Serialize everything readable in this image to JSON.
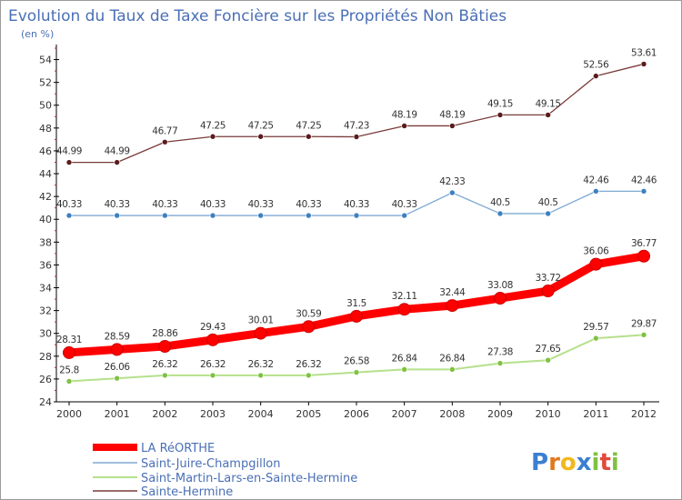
{
  "chart_data": {
    "type": "line",
    "title": "Evolution du Taux de Taxe Foncière sur les Propriétés Non Bâties",
    "ylabel": "(en %)",
    "xlabel": "",
    "x": [
      "2000",
      "2001",
      "2002",
      "2003",
      "2004",
      "2005",
      "2006",
      "2007",
      "2008",
      "2009",
      "2010",
      "2011",
      "2012"
    ],
    "ylim": [
      24,
      55
    ],
    "yticks": [
      24,
      26,
      28,
      30,
      32,
      34,
      36,
      38,
      40,
      42,
      44,
      46,
      48,
      50,
      52,
      54
    ],
    "grid": false,
    "legend_position": "bottom-left",
    "series": [
      {
        "name": "LA RéORTHE",
        "color": "#ff0000",
        "markerColor": "#cc0000",
        "width": "thick",
        "values": [
          28.31,
          28.59,
          28.86,
          29.43,
          30.01,
          30.59,
          31.5,
          32.11,
          32.44,
          33.08,
          33.72,
          36.06,
          36.77
        ],
        "labels": [
          "28.31",
          "28.59",
          "28.86",
          "29.43",
          "30.01",
          "30.59",
          "31.5",
          "32.11",
          "32.44",
          "33.08",
          "33.72",
          "36.06",
          "36.77"
        ]
      },
      {
        "name": "Saint-Juire-Champgillon",
        "color": "#7fa9d4",
        "markerColor": "#3d7fc1",
        "width": "thin",
        "values": [
          40.33,
          40.33,
          40.33,
          40.33,
          40.33,
          40.33,
          40.33,
          40.33,
          42.33,
          40.5,
          40.5,
          42.46,
          42.46
        ],
        "labels": [
          "40.33",
          "40.33",
          "40.33",
          "40.33",
          "40.33",
          "40.33",
          "40.33",
          "40.33",
          "42.33",
          "40.5",
          "40.5",
          "42.46",
          "42.46"
        ]
      },
      {
        "name": "Saint-Martin-Lars-en-Sainte-Hermine",
        "color": "#b5e08c",
        "markerColor": "#7fc241",
        "width": "medium",
        "values": [
          25.8,
          26.06,
          26.32,
          26.32,
          26.32,
          26.32,
          26.58,
          26.84,
          26.84,
          27.38,
          27.65,
          29.57,
          29.87
        ],
        "labels": [
          "25.8",
          "26.06",
          "26.32",
          "26.32",
          "26.32",
          "26.32",
          "26.58",
          "26.84",
          "26.84",
          "27.38",
          "27.65",
          "29.57",
          "29.87"
        ]
      },
      {
        "name": "Sainte-Hermine",
        "color": "#7a3b3b",
        "markerColor": "#5a1c1c",
        "width": "thin",
        "values": [
          44.99,
          44.99,
          46.77,
          47.25,
          47.25,
          47.25,
          47.23,
          48.19,
          48.19,
          49.15,
          49.15,
          52.56,
          53.61
        ],
        "labels": [
          "44.99",
          "44.99",
          "46.77",
          "47.25",
          "47.25",
          "47.25",
          "47.23",
          "48.19",
          "48.19",
          "49.15",
          "49.15",
          "52.56",
          "53.61"
        ]
      }
    ]
  },
  "logo": {
    "text": "Proxiti",
    "letters": [
      {
        "ch": "P",
        "color": "#3a7fd0"
      },
      {
        "ch": "r",
        "color": "#e07a1f"
      },
      {
        "ch": "o",
        "color": "#f2b81c"
      },
      {
        "ch": "x",
        "color": "#3a7fd0"
      },
      {
        "ch": "i",
        "color": "#7fc241"
      },
      {
        "ch": "t",
        "color": "#e04a3a"
      },
      {
        "ch": "i",
        "color": "#7fc241"
      }
    ]
  }
}
